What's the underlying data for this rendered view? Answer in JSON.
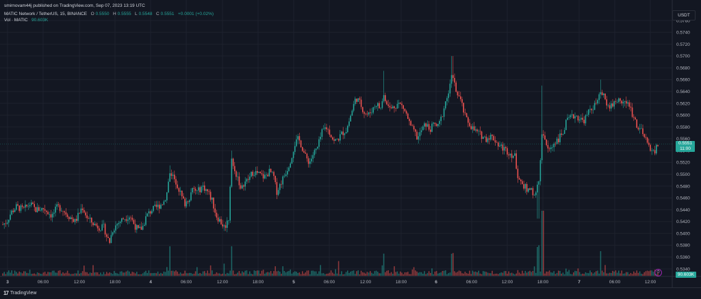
{
  "attribution": "smirnovam44j published on TradingView.com, Sep 07, 2023 13:19 UTC",
  "legend": {
    "symbol": "MATIC Network / TetherUS, 15, BINANCE",
    "open_label": "O",
    "open": "0.5550",
    "high_label": "H",
    "high": "0.5555",
    "low_label": "L",
    "low": "0.5548",
    "close_label": "C",
    "close": "0.5551",
    "change": "+0.0001 (+0.02%)"
  },
  "volume_legend": {
    "label": "Vol · MATIC",
    "value": "90.603K"
  },
  "currency": "USDT",
  "last_price": {
    "price": "0.5551",
    "countdown": "11:00"
  },
  "volume_tag": "90.603K",
  "footer": {
    "logo_glyph": "17",
    "brand": "TradingView"
  },
  "alert_icon": "alert-clock-icon",
  "colors": {
    "up": "#26a69a",
    "down": "#ef5350",
    "background": "#131722",
    "grid": "#1e222d"
  },
  "chart_data": {
    "type": "candlestick",
    "y_axis_labels": [
      "0.5760",
      "0.5740",
      "0.5720",
      "0.5700",
      "0.5680",
      "0.5660",
      "0.5640",
      "0.5620",
      "0.5600",
      "0.5580",
      "0.5560",
      "0.5540",
      "0.5520",
      "0.5500",
      "0.5480",
      "0.5460",
      "0.5440",
      "0.5420",
      "0.5400",
      "0.5380",
      "0.5360",
      "0.5340"
    ],
    "ylim": [
      0.533,
      0.577
    ],
    "x_axis_labels": [
      "3",
      "06:00",
      "12:00",
      "18:00",
      "4",
      "06:00",
      "12:00",
      "18:00",
      "5",
      "06:00",
      "12:00",
      "18:00",
      "6",
      "06:00",
      "12:00",
      "18:00",
      "7",
      "06:00",
      "12:00"
    ],
    "bold_x_labels": [
      "3",
      "4",
      "5",
      "6",
      "7"
    ],
    "anchors": [
      [
        0,
        0.5415
      ],
      [
        4,
        0.5415
      ],
      [
        10,
        0.542
      ],
      [
        16,
        0.5435
      ],
      [
        24,
        0.5445
      ],
      [
        34,
        0.544
      ],
      [
        44,
        0.545
      ],
      [
        52,
        0.544
      ],
      [
        64,
        0.5442
      ],
      [
        76,
        0.543
      ],
      [
        84,
        0.5445
      ],
      [
        90,
        0.5442
      ],
      [
        100,
        0.543
      ],
      [
        110,
        0.542
      ],
      [
        120,
        0.5445
      ],
      [
        128,
        0.5425
      ],
      [
        138,
        0.5415
      ],
      [
        146,
        0.541
      ],
      [
        152,
        0.541
      ],
      [
        156,
        0.5395
      ],
      [
        160,
        0.5385
      ],
      [
        164,
        0.5405
      ],
      [
        170,
        0.5415
      ],
      [
        180,
        0.5425
      ],
      [
        190,
        0.543
      ],
      [
        196,
        0.5415
      ],
      [
        202,
        0.5405
      ],
      [
        208,
        0.541
      ],
      [
        214,
        0.543
      ],
      [
        222,
        0.544
      ],
      [
        230,
        0.5445
      ],
      [
        236,
        0.545
      ],
      [
        240,
        0.5455
      ],
      [
        244,
        0.547
      ],
      [
        248,
        0.5505
      ],
      [
        254,
        0.5495
      ],
      [
        260,
        0.548
      ],
      [
        266,
        0.546
      ],
      [
        270,
        0.545
      ],
      [
        276,
        0.546
      ],
      [
        282,
        0.5475
      ],
      [
        288,
        0.547
      ],
      [
        296,
        0.548
      ],
      [
        304,
        0.547
      ],
      [
        310,
        0.5455
      ],
      [
        316,
        0.543
      ],
      [
        322,
        0.542
      ],
      [
        328,
        0.541
      ],
      [
        334,
        0.5425
      ],
      [
        338,
        0.553
      ],
      [
        342,
        0.5505
      ],
      [
        348,
        0.5495
      ],
      [
        352,
        0.547
      ],
      [
        356,
        0.5485
      ],
      [
        362,
        0.549
      ],
      [
        370,
        0.5505
      ],
      [
        378,
        0.55
      ],
      [
        386,
        0.5495
      ],
      [
        394,
        0.5505
      ],
      [
        400,
        0.5495
      ],
      [
        404,
        0.547
      ],
      [
        408,
        0.548
      ],
      [
        414,
        0.5495
      ],
      [
        420,
        0.551
      ],
      [
        426,
        0.553
      ],
      [
        430,
        0.555
      ],
      [
        436,
        0.556
      ],
      [
        440,
        0.555
      ],
      [
        446,
        0.553
      ],
      [
        452,
        0.552
      ],
      [
        458,
        0.5535
      ],
      [
        464,
        0.5545
      ],
      [
        470,
        0.557
      ],
      [
        476,
        0.558
      ],
      [
        482,
        0.557
      ],
      [
        488,
        0.5555
      ],
      [
        494,
        0.556
      ],
      [
        500,
        0.557
      ],
      [
        506,
        0.5575
      ],
      [
        510,
        0.559
      ],
      [
        516,
        0.5615
      ],
      [
        520,
        0.563
      ],
      [
        526,
        0.562
      ],
      [
        532,
        0.5605
      ],
      [
        538,
        0.56
      ],
      [
        544,
        0.561
      ],
      [
        550,
        0.562
      ],
      [
        556,
        0.561
      ],
      [
        560,
        0.5635
      ],
      [
        564,
        0.562
      ],
      [
        570,
        0.561
      ],
      [
        576,
        0.5615
      ],
      [
        582,
        0.562
      ],
      [
        588,
        0.5615
      ],
      [
        594,
        0.56
      ],
      [
        600,
        0.558
      ],
      [
        606,
        0.557
      ],
      [
        610,
        0.556
      ],
      [
        616,
        0.5575
      ],
      [
        622,
        0.5585
      ],
      [
        628,
        0.5575
      ],
      [
        634,
        0.5585
      ],
      [
        640,
        0.558
      ],
      [
        646,
        0.56
      ],
      [
        650,
        0.562
      ],
      [
        656,
        0.564
      ],
      [
        660,
        0.5665
      ],
      [
        664,
        0.565
      ],
      [
        668,
        0.564
      ],
      [
        674,
        0.562
      ],
      [
        680,
        0.5595
      ],
      [
        686,
        0.5585
      ],
      [
        692,
        0.5575
      ],
      [
        698,
        0.557
      ],
      [
        704,
        0.5565
      ],
      [
        710,
        0.556
      ],
      [
        716,
        0.5565
      ],
      [
        722,
        0.556
      ],
      [
        728,
        0.555
      ],
      [
        734,
        0.5545
      ],
      [
        740,
        0.554
      ],
      [
        746,
        0.5535
      ],
      [
        752,
        0.553
      ],
      [
        756,
        0.55
      ],
      [
        760,
        0.549
      ],
      [
        766,
        0.548
      ],
      [
        772,
        0.547
      ],
      [
        776,
        0.548
      ],
      [
        780,
        0.546
      ],
      [
        784,
        0.547
      ],
      [
        788,
        0.55
      ],
      [
        792,
        0.5575
      ],
      [
        796,
        0.556
      ],
      [
        800,
        0.554
      ],
      [
        806,
        0.5545
      ],
      [
        810,
        0.5555
      ],
      [
        816,
        0.556
      ],
      [
        822,
        0.557
      ],
      [
        828,
        0.559
      ],
      [
        834,
        0.5595
      ],
      [
        840,
        0.56
      ],
      [
        846,
        0.5595
      ],
      [
        852,
        0.559
      ],
      [
        858,
        0.56
      ],
      [
        862,
        0.561
      ],
      [
        868,
        0.5615
      ],
      [
        874,
        0.5625
      ],
      [
        878,
        0.564
      ],
      [
        884,
        0.5625
      ],
      [
        890,
        0.5615
      ],
      [
        896,
        0.562
      ],
      [
        902,
        0.5625
      ],
      [
        908,
        0.5625
      ],
      [
        914,
        0.562
      ],
      [
        920,
        0.5615
      ],
      [
        926,
        0.5595
      ],
      [
        932,
        0.558
      ],
      [
        938,
        0.557
      ],
      [
        944,
        0.5555
      ],
      [
        950,
        0.5545
      ],
      [
        956,
        0.5535
      ],
      [
        960,
        0.555
      ],
      [
        962,
        0.5551
      ]
    ]
  }
}
